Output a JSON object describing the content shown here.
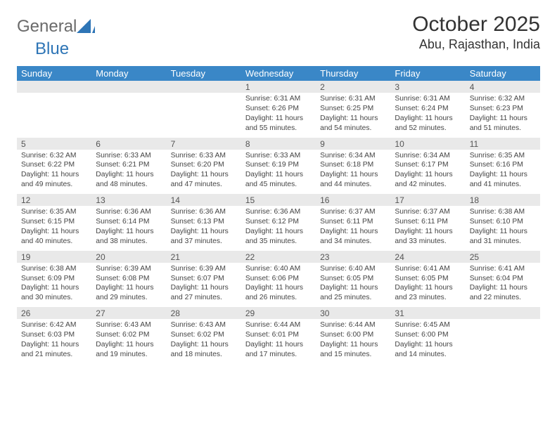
{
  "brand": {
    "text1": "General",
    "text2": "Blue",
    "logo_color": "#2e75b6",
    "text_color": "#6a6a6a"
  },
  "title": {
    "month": "October 2025",
    "location": "Abu, Rajasthan, India",
    "title_fontsize": 30,
    "location_fontsize": 18
  },
  "colors": {
    "header_bg": "#3a87c7",
    "header_text": "#ffffff",
    "daynum_bg": "#e9e9e9",
    "divider": "#3a87c7",
    "body_text": "#444444",
    "background": "#ffffff"
  },
  "daynames": [
    "Sunday",
    "Monday",
    "Tuesday",
    "Wednesday",
    "Thursday",
    "Friday",
    "Saturday"
  ],
  "weeks": [
    [
      {
        "num": "",
        "sunrise": "",
        "sunset": "",
        "daylight": ""
      },
      {
        "num": "",
        "sunrise": "",
        "sunset": "",
        "daylight": ""
      },
      {
        "num": "",
        "sunrise": "",
        "sunset": "",
        "daylight": ""
      },
      {
        "num": "1",
        "sunrise": "Sunrise: 6:31 AM",
        "sunset": "Sunset: 6:26 PM",
        "daylight": "Daylight: 11 hours and 55 minutes."
      },
      {
        "num": "2",
        "sunrise": "Sunrise: 6:31 AM",
        "sunset": "Sunset: 6:25 PM",
        "daylight": "Daylight: 11 hours and 54 minutes."
      },
      {
        "num": "3",
        "sunrise": "Sunrise: 6:31 AM",
        "sunset": "Sunset: 6:24 PM",
        "daylight": "Daylight: 11 hours and 52 minutes."
      },
      {
        "num": "4",
        "sunrise": "Sunrise: 6:32 AM",
        "sunset": "Sunset: 6:23 PM",
        "daylight": "Daylight: 11 hours and 51 minutes."
      }
    ],
    [
      {
        "num": "5",
        "sunrise": "Sunrise: 6:32 AM",
        "sunset": "Sunset: 6:22 PM",
        "daylight": "Daylight: 11 hours and 49 minutes."
      },
      {
        "num": "6",
        "sunrise": "Sunrise: 6:33 AM",
        "sunset": "Sunset: 6:21 PM",
        "daylight": "Daylight: 11 hours and 48 minutes."
      },
      {
        "num": "7",
        "sunrise": "Sunrise: 6:33 AM",
        "sunset": "Sunset: 6:20 PM",
        "daylight": "Daylight: 11 hours and 47 minutes."
      },
      {
        "num": "8",
        "sunrise": "Sunrise: 6:33 AM",
        "sunset": "Sunset: 6:19 PM",
        "daylight": "Daylight: 11 hours and 45 minutes."
      },
      {
        "num": "9",
        "sunrise": "Sunrise: 6:34 AM",
        "sunset": "Sunset: 6:18 PM",
        "daylight": "Daylight: 11 hours and 44 minutes."
      },
      {
        "num": "10",
        "sunrise": "Sunrise: 6:34 AM",
        "sunset": "Sunset: 6:17 PM",
        "daylight": "Daylight: 11 hours and 42 minutes."
      },
      {
        "num": "11",
        "sunrise": "Sunrise: 6:35 AM",
        "sunset": "Sunset: 6:16 PM",
        "daylight": "Daylight: 11 hours and 41 minutes."
      }
    ],
    [
      {
        "num": "12",
        "sunrise": "Sunrise: 6:35 AM",
        "sunset": "Sunset: 6:15 PM",
        "daylight": "Daylight: 11 hours and 40 minutes."
      },
      {
        "num": "13",
        "sunrise": "Sunrise: 6:36 AM",
        "sunset": "Sunset: 6:14 PM",
        "daylight": "Daylight: 11 hours and 38 minutes."
      },
      {
        "num": "14",
        "sunrise": "Sunrise: 6:36 AM",
        "sunset": "Sunset: 6:13 PM",
        "daylight": "Daylight: 11 hours and 37 minutes."
      },
      {
        "num": "15",
        "sunrise": "Sunrise: 6:36 AM",
        "sunset": "Sunset: 6:12 PM",
        "daylight": "Daylight: 11 hours and 35 minutes."
      },
      {
        "num": "16",
        "sunrise": "Sunrise: 6:37 AM",
        "sunset": "Sunset: 6:11 PM",
        "daylight": "Daylight: 11 hours and 34 minutes."
      },
      {
        "num": "17",
        "sunrise": "Sunrise: 6:37 AM",
        "sunset": "Sunset: 6:11 PM",
        "daylight": "Daylight: 11 hours and 33 minutes."
      },
      {
        "num": "18",
        "sunrise": "Sunrise: 6:38 AM",
        "sunset": "Sunset: 6:10 PM",
        "daylight": "Daylight: 11 hours and 31 minutes."
      }
    ],
    [
      {
        "num": "19",
        "sunrise": "Sunrise: 6:38 AM",
        "sunset": "Sunset: 6:09 PM",
        "daylight": "Daylight: 11 hours and 30 minutes."
      },
      {
        "num": "20",
        "sunrise": "Sunrise: 6:39 AM",
        "sunset": "Sunset: 6:08 PM",
        "daylight": "Daylight: 11 hours and 29 minutes."
      },
      {
        "num": "21",
        "sunrise": "Sunrise: 6:39 AM",
        "sunset": "Sunset: 6:07 PM",
        "daylight": "Daylight: 11 hours and 27 minutes."
      },
      {
        "num": "22",
        "sunrise": "Sunrise: 6:40 AM",
        "sunset": "Sunset: 6:06 PM",
        "daylight": "Daylight: 11 hours and 26 minutes."
      },
      {
        "num": "23",
        "sunrise": "Sunrise: 6:40 AM",
        "sunset": "Sunset: 6:05 PM",
        "daylight": "Daylight: 11 hours and 25 minutes."
      },
      {
        "num": "24",
        "sunrise": "Sunrise: 6:41 AM",
        "sunset": "Sunset: 6:05 PM",
        "daylight": "Daylight: 11 hours and 23 minutes."
      },
      {
        "num": "25",
        "sunrise": "Sunrise: 6:41 AM",
        "sunset": "Sunset: 6:04 PM",
        "daylight": "Daylight: 11 hours and 22 minutes."
      }
    ],
    [
      {
        "num": "26",
        "sunrise": "Sunrise: 6:42 AM",
        "sunset": "Sunset: 6:03 PM",
        "daylight": "Daylight: 11 hours and 21 minutes."
      },
      {
        "num": "27",
        "sunrise": "Sunrise: 6:43 AM",
        "sunset": "Sunset: 6:02 PM",
        "daylight": "Daylight: 11 hours and 19 minutes."
      },
      {
        "num": "28",
        "sunrise": "Sunrise: 6:43 AM",
        "sunset": "Sunset: 6:02 PM",
        "daylight": "Daylight: 11 hours and 18 minutes."
      },
      {
        "num": "29",
        "sunrise": "Sunrise: 6:44 AM",
        "sunset": "Sunset: 6:01 PM",
        "daylight": "Daylight: 11 hours and 17 minutes."
      },
      {
        "num": "30",
        "sunrise": "Sunrise: 6:44 AM",
        "sunset": "Sunset: 6:00 PM",
        "daylight": "Daylight: 11 hours and 15 minutes."
      },
      {
        "num": "31",
        "sunrise": "Sunrise: 6:45 AM",
        "sunset": "Sunset: 6:00 PM",
        "daylight": "Daylight: 11 hours and 14 minutes."
      },
      {
        "num": "",
        "sunrise": "",
        "sunset": "",
        "daylight": ""
      }
    ]
  ]
}
